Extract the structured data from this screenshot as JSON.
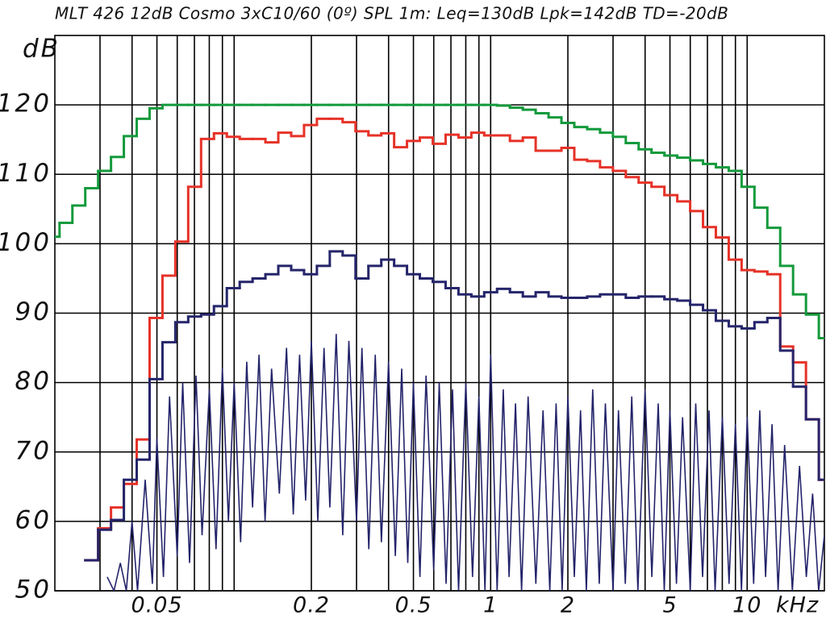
{
  "chart_data": {
    "type": "step",
    "title": "MLT 426  12dB Cosmo 3xC10/60 (0º) SPL 1m: Leq=130dB Lpk=142dB TD=-20dB",
    "ylabel": "dB",
    "xlabel": "kHz",
    "xscale": "log",
    "grid": true,
    "xlim": [
      0.02,
      20
    ],
    "ylim": [
      50,
      130
    ],
    "xticks": [
      0.05,
      0.2,
      0.5,
      1,
      2,
      5,
      10
    ],
    "xminor": [
      0.03,
      0.04,
      0.06,
      0.07,
      0.08,
      0.09,
      0.1,
      0.3,
      0.4,
      0.6,
      0.7,
      0.8,
      0.9,
      3,
      4,
      6,
      7,
      8,
      9
    ],
    "yticks": [
      50,
      60,
      70,
      80,
      90,
      100,
      110,
      120
    ],
    "x": [
      0.01969,
      0.0221,
      0.0248,
      0.02784,
      0.03125,
      0.03508,
      0.03937,
      0.04419,
      0.04961,
      0.05568,
      0.0625,
      0.07015,
      0.07875,
      0.08839,
      0.09921,
      0.1114,
      0.125,
      0.1403,
      0.1575,
      0.1768,
      0.1984,
      0.2227,
      0.25,
      0.2806,
      0.315,
      0.3536,
      0.3969,
      0.4454,
      0.5,
      0.5612,
      0.63,
      0.7071,
      0.7937,
      0.8909,
      1,
      1.122,
      1.26,
      1.414,
      1.587,
      1.782,
      2,
      2.245,
      2.52,
      2.828,
      3.175,
      3.564,
      4,
      4.49,
      5.04,
      5.657,
      6.35,
      7.127,
      8,
      8.98,
      10.08,
      11.31,
      12.7,
      14.25,
      16,
      17.96,
      20.16
    ],
    "series": [
      {
        "color": "#149a3c",
        "values": [
          101,
          103,
          105.5,
          108,
          110.5,
          112.5,
          115.5,
          118,
          119.5,
          120,
          120,
          120,
          120,
          120,
          120,
          120,
          120,
          120,
          120,
          120,
          120,
          120,
          120,
          120,
          120,
          120,
          120,
          120,
          120,
          120,
          120,
          120,
          120,
          120,
          120,
          119.9,
          119.6,
          119.3,
          118.8,
          118.2,
          117.4,
          116.8,
          116.5,
          116,
          115.4,
          114.5,
          113.6,
          113.1,
          112.7,
          112.4,
          112,
          111.5,
          111,
          110.5,
          108.2,
          105.2,
          102.3,
          96.8,
          92.7,
          89.8,
          86.4
        ]
      },
      {
        "color": "#e63228",
        "values": [
          null,
          null,
          null,
          54.4,
          59,
          62,
          65.4,
          71.8,
          89.3,
          95.4,
          100.3,
          108.2,
          115.1,
          115.9,
          115.4,
          115.1,
          115.1,
          114.6,
          116,
          115.5,
          117.1,
          118,
          118,
          117.5,
          116.2,
          115.6,
          115.9,
          113.9,
          114.8,
          115.3,
          114.4,
          115.7,
          115.3,
          116,
          115.6,
          115.6,
          114.8,
          115.3,
          113.4,
          113.4,
          113.8,
          112.1,
          111.9,
          111,
          110.5,
          109.6,
          108.8,
          108.2,
          107,
          106.1,
          104.7,
          102.4,
          100.9,
          97.7,
          96.2,
          96,
          95.6,
          85.2,
          82.9,
          74.7,
          66
        ]
      },
      {
        "color": "#25256b",
        "values": [
          null,
          null,
          null,
          54.4,
          58.8,
          60.2,
          66,
          68.9,
          80.5,
          85.8,
          88.7,
          89.5,
          89.8,
          91,
          93.6,
          94.5,
          95,
          95.6,
          96.8,
          96.2,
          95.6,
          96.8,
          98.9,
          98.3,
          95,
          96.8,
          97.7,
          96.8,
          95.6,
          95,
          94.5,
          93.6,
          92.7,
          92.4,
          93,
          93.5,
          93,
          92.4,
          93,
          92.4,
          92.2,
          92.2,
          92.4,
          92.7,
          92.7,
          92.2,
          92.4,
          92.4,
          92,
          91.8,
          91.2,
          90.4,
          88.9,
          88.1,
          87.8,
          88.7,
          89.3,
          84.6,
          79.4,
          74.7,
          66
        ]
      }
    ],
    "spectrum": {
      "color": "#23236a",
      "x": [
        0.032,
        0.034,
        0.036,
        0.038,
        0.04,
        0.042,
        0.045,
        0.048,
        0.05,
        0.053,
        0.056,
        0.06,
        0.063,
        0.067,
        0.071,
        0.075,
        0.08,
        0.085,
        0.09,
        0.095,
        0.1,
        0.106,
        0.112,
        0.118,
        0.125,
        0.132,
        0.14,
        0.15,
        0.16,
        0.17,
        0.18,
        0.19,
        0.2,
        0.212,
        0.224,
        0.236,
        0.25,
        0.265,
        0.28,
        0.3,
        0.315,
        0.335,
        0.355,
        0.375,
        0.4,
        0.425,
        0.45,
        0.475,
        0.5,
        0.53,
        0.56,
        0.6,
        0.63,
        0.67,
        0.71,
        0.75,
        0.8,
        0.85,
        0.9,
        0.95,
        1,
        1.06,
        1.12,
        1.18,
        1.25,
        1.32,
        1.4,
        1.5,
        1.6,
        1.7,
        1.8,
        1.9,
        2,
        2.12,
        2.24,
        2.36,
        2.5,
        2.65,
        2.8,
        3,
        3.15,
        3.35,
        3.55,
        3.75,
        4,
        4.25,
        4.5,
        4.75,
        5,
        5.3,
        5.6,
        6,
        6.3,
        6.7,
        7.1,
        7.5,
        8,
        8.5,
        9,
        9.5,
        10,
        10.6,
        11.2,
        11.8,
        12.5,
        13.2,
        14,
        15,
        16,
        17,
        18,
        19,
        20
      ],
      "values": [
        52,
        50,
        54,
        50,
        60,
        50,
        66,
        51,
        72,
        52,
        78,
        55,
        80,
        54,
        81,
        58,
        79,
        56,
        82,
        60,
        80,
        57,
        83,
        62,
        84,
        60,
        82,
        64,
        85,
        61,
        84,
        63,
        86,
        60,
        85,
        62,
        87,
        58,
        86,
        60,
        85,
        56,
        84,
        57,
        83,
        55,
        82,
        54,
        80,
        52,
        81,
        53,
        80,
        51,
        79,
        50,
        80,
        52,
        78,
        50,
        84,
        50,
        79,
        52,
        77,
        50,
        78,
        51,
        76,
        50,
        77,
        50,
        78,
        52,
        76,
        50,
        79,
        51,
        77,
        50,
        76,
        51,
        78,
        50,
        79,
        52,
        77,
        50,
        76,
        51,
        75,
        50,
        77,
        52,
        76,
        50,
        75,
        51,
        74,
        50,
        75,
        51,
        76,
        52,
        74,
        50,
        71,
        50,
        68,
        52,
        64,
        50,
        58
      ]
    }
  }
}
